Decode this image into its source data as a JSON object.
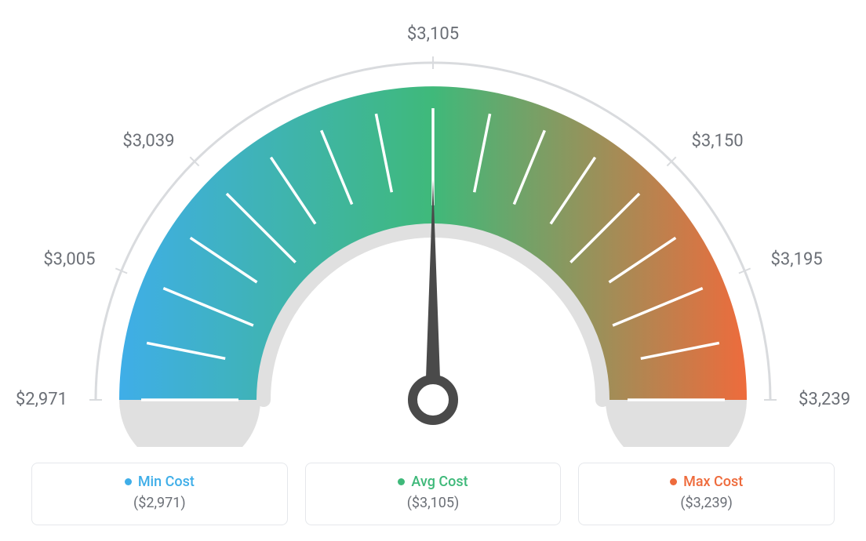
{
  "gauge": {
    "type": "gauge",
    "min_value": 2971,
    "avg_value": 3105,
    "max_value": 3239,
    "needle_value": 3105,
    "tick_labels": [
      "$2,971",
      "$3,005",
      "$3,039",
      "$3,105",
      "$3,150",
      "$3,195",
      "$3,239"
    ],
    "tick_label_angles_deg": [
      -90,
      -67.5,
      -45,
      0,
      45,
      67.5,
      90
    ],
    "tick_label_fontsize": 22,
    "tick_label_color": "#6b6f76",
    "minor_tick_count": 17,
    "minor_tick_start_deg": -90,
    "minor_tick_end_deg": 90,
    "arc_inner_radius": 220,
    "arc_outer_radius": 400,
    "outer_ring_radius": 430,
    "outer_ring_stroke": "#d9dbde",
    "outer_ring_width": 3,
    "gradient_colors": {
      "start": "#3faee8",
      "mid": "#3fb97a",
      "end": "#ee6b3c"
    },
    "base_cap_fill": "#e0e0e0",
    "needle_color": "#4a4a4a",
    "background_color": "#ffffff",
    "tick_stroke": "#ffffff",
    "tick_stroke_width": 3.5
  },
  "legend": {
    "min": {
      "label": "Min Cost",
      "value": "($2,971)",
      "color": "#3faee8"
    },
    "avg": {
      "label": "Avg Cost",
      "value": "($3,105)",
      "color": "#3fb97a"
    },
    "max": {
      "label": "Max Cost",
      "value": "($3,239)",
      "color": "#ee6b3c"
    }
  }
}
